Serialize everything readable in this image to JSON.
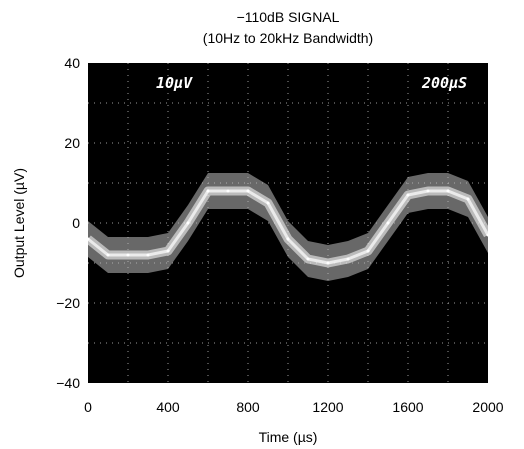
{
  "chart_data": {
    "type": "line",
    "title": "−110dB SIGNAL",
    "subtitle": "(10Hz to 20kHz Bandwidth)",
    "xlabel": "Time (µs)",
    "ylabel": "Output Level (µV)",
    "xlim": [
      0,
      2000
    ],
    "ylim": [
      -40,
      40
    ],
    "x_ticks": [
      "0",
      "400",
      "800",
      "1200",
      "1600",
      "2000"
    ],
    "y_ticks": [
      "40",
      "20",
      "0",
      "−20",
      "−40"
    ],
    "grid": true,
    "background": "#000000",
    "trace_color": "#ffffff",
    "scope_labels": {
      "vertical_scale": "10µV",
      "time_scale": "200µS"
    },
    "series": [
      {
        "x": [
          0,
          100,
          200,
          300,
          400,
          500,
          600,
          700,
          800,
          900,
          1000,
          1100,
          1200,
          1300,
          1400,
          1500,
          1600,
          1700,
          1800,
          1900,
          2000
        ],
        "values": [
          -4,
          -8,
          -8,
          -8,
          -7,
          0,
          8,
          8,
          8,
          5,
          -4,
          -9,
          -10,
          -9,
          -7,
          0,
          7,
          8,
          8,
          6,
          -3
        ]
      }
    ],
    "band_halfwidth": 4.5
  }
}
